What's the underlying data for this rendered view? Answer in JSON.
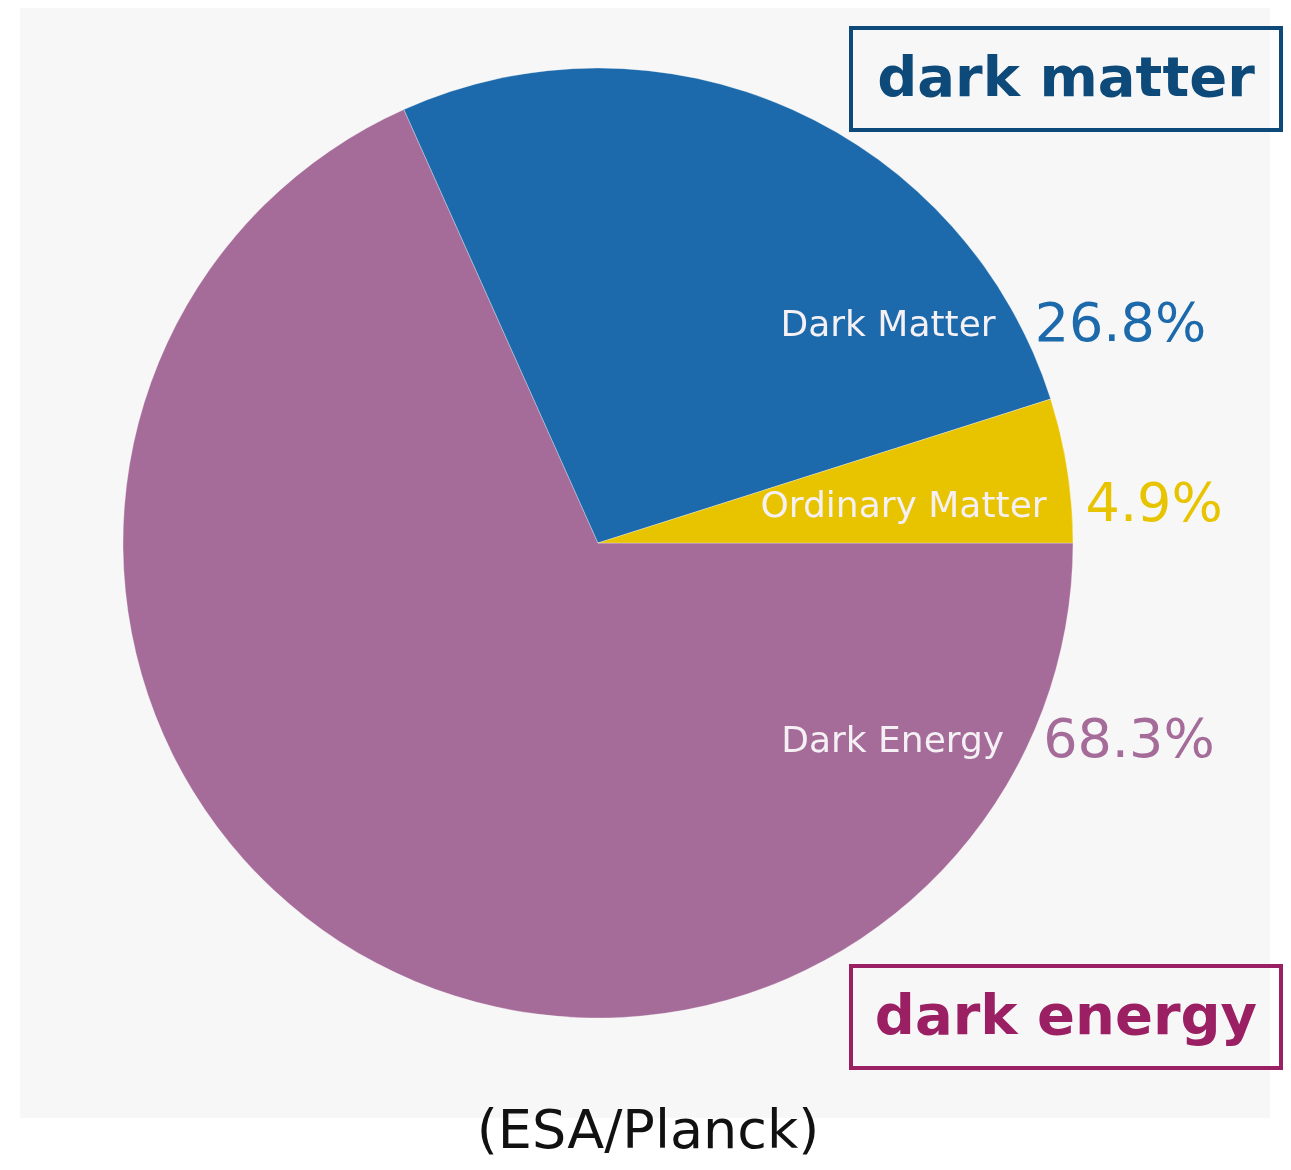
{
  "chart_data": {
    "type": "pie",
    "categories": [
      "Dark Energy",
      "Dark Matter",
      "Ordinary Matter"
    ],
    "values": [
      68.3,
      26.8,
      4.9
    ],
    "colors": [
      "#a56b99",
      "#1c6aab",
      "#e8c300"
    ],
    "value_labels": [
      "68.3%",
      "26.8%",
      "4.9%"
    ],
    "annotations": [
      "dark matter",
      "dark energy",
      "(ESA/Planck)"
    ]
  }
}
